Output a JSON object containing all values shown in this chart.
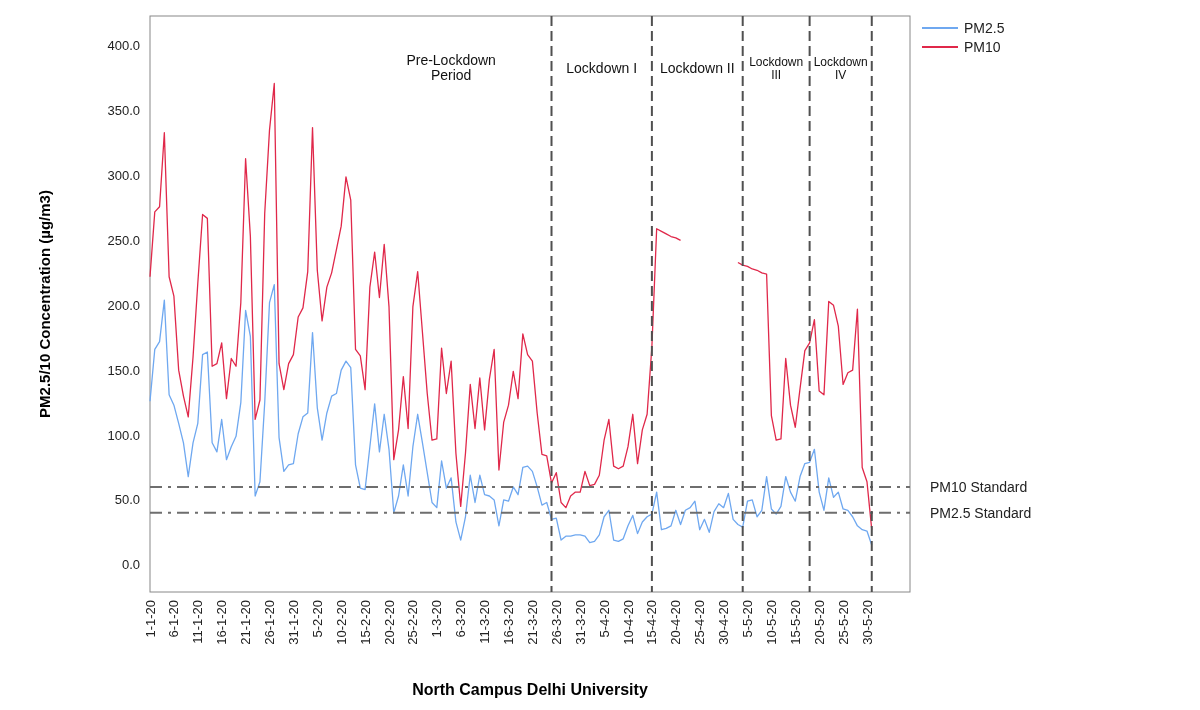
{
  "chart_data": {
    "type": "line",
    "xlabel": "North Campus Delhi University",
    "ylabel": "PM2.5/10 Concentration (µg/m3)",
    "legend": "top right",
    "x": [
      "--01-01",
      "--01-02",
      "--01-03",
      "--01-04",
      "--01-05",
      "--01-06",
      "--01-07",
      "--01-08",
      "--01-09",
      "--01-10",
      "--01-11",
      "--01-12",
      "--01-13",
      "--01-14",
      "--01-15",
      "--01-16",
      "--01-17",
      "--01-18",
      "--01-19",
      "--01-20",
      "--01-21",
      "--01-22",
      "--01-23",
      "--01-24",
      "--01-25",
      "--01-26",
      "--01-27",
      "--01-28",
      "--01-29",
      "--01-30",
      "--01-31",
      "--02-01",
      "--02-02",
      "--02-03",
      "--02-04",
      "--02-05",
      "--02-06",
      "--02-07",
      "--02-08",
      "--02-09",
      "--02-10",
      "--02-11",
      "--02-12",
      "--02-13",
      "--02-14",
      "--02-15",
      "--02-16",
      "--02-17",
      "--02-18",
      "--02-19",
      "--02-20",
      "--02-21",
      "--02-22",
      "--02-23",
      "--02-24",
      "--02-25",
      "--02-26",
      "--02-27",
      "--02-28",
      "--02-29",
      "--03-01",
      "--03-02",
      "--03-03",
      "--03-04",
      "--03-05",
      "--03-06",
      "--03-07",
      "--03-08",
      "--03-09",
      "--03-10",
      "--03-11",
      "--03-12",
      "--03-13",
      "--03-14",
      "--03-15",
      "--03-16",
      "--03-17",
      "--03-18",
      "--03-19",
      "--03-20",
      "--03-21",
      "--03-22",
      "--03-23",
      "--03-24",
      "--03-25",
      "--03-26",
      "--03-27",
      "--03-28",
      "--03-29",
      "--03-30",
      "--03-31",
      "--04-01",
      "--04-02",
      "--04-03",
      "--04-04",
      "--04-05",
      "--04-06",
      "--04-07",
      "--04-08",
      "--04-09",
      "--04-10",
      "--04-11",
      "--04-12",
      "--04-13",
      "--04-14",
      "--04-15",
      "--04-16",
      "--04-17",
      "--04-18",
      "--04-19",
      "--04-20",
      "--04-21",
      "--04-22",
      "--04-23",
      "--04-24",
      "--04-25",
      "--04-26",
      "--04-27",
      "--04-28",
      "--04-29",
      "--04-30",
      "--05-01",
      "--05-02",
      "--05-03",
      "--05-04",
      "--05-05",
      "--05-06",
      "--05-07",
      "--05-08",
      "--05-09",
      "--05-10",
      "--05-11",
      "--05-12",
      "--05-13",
      "--05-14",
      "--05-15",
      "--05-16",
      "--05-17",
      "--05-18",
      "--05-19",
      "--05-20",
      "--05-21",
      "--05-22",
      "--05-23",
      "--05-24",
      "--05-25",
      "--05-26",
      "--05-27",
      "--05-28",
      "--05-29",
      "--05-30",
      "--05-31"
    ],
    "xlim": [
      "--01-01",
      "--06-08"
    ],
    "xticks": [
      {
        "value": "--01-01",
        "label": "1-1-20"
      },
      {
        "value": "--01-06",
        "label": "6-1-20"
      },
      {
        "value": "--01-11",
        "label": "11-1-20"
      },
      {
        "value": "--01-16",
        "label": "16-1-20"
      },
      {
        "value": "--01-21",
        "label": "21-1-20"
      },
      {
        "value": "--01-26",
        "label": "26-1-20"
      },
      {
        "value": "--01-31",
        "label": "31-1-20"
      },
      {
        "value": "--02-05",
        "label": "5-2-20"
      },
      {
        "value": "--02-10",
        "label": "10-2-20"
      },
      {
        "value": "--02-15",
        "label": "15-2-20"
      },
      {
        "value": "--02-20",
        "label": "20-2-20"
      },
      {
        "value": "--02-25",
        "label": "25-2-20"
      },
      {
        "value": "--03-01",
        "label": "1-3-20"
      },
      {
        "value": "--03-06",
        "label": "6-3-20"
      },
      {
        "value": "--03-11",
        "label": "11-3-20"
      },
      {
        "value": "--03-16",
        "label": "16-3-20"
      },
      {
        "value": "--03-21",
        "label": "21-3-20"
      },
      {
        "value": "--03-26",
        "label": "26-3-20"
      },
      {
        "value": "--03-31",
        "label": "31-3-20"
      },
      {
        "value": "--04-05",
        "label": "5-4-20"
      },
      {
        "value": "--04-10",
        "label": "10-4-20"
      },
      {
        "value": "--04-15",
        "label": "15-4-20"
      },
      {
        "value": "--04-20",
        "label": "20-4-20"
      },
      {
        "value": "--04-25",
        "label": "25-4-20"
      },
      {
        "value": "--04-30",
        "label": "30-4-20"
      },
      {
        "value": "--05-05",
        "label": "5-5-20"
      },
      {
        "value": "--05-10",
        "label": "10-5-20"
      },
      {
        "value": "--05-15",
        "label": "15-5-20"
      },
      {
        "value": "--05-20",
        "label": "20-5-20"
      },
      {
        "value": "--05-25",
        "label": "25-5-20"
      },
      {
        "value": "--05-30",
        "label": "30-5-20"
      }
    ],
    "ylim": [
      -21,
      423
    ],
    "yticks": [
      {
        "value": 0,
        "label": "0.0"
      },
      {
        "value": 50,
        "label": "50.0"
      },
      {
        "value": 100,
        "label": "100.0"
      },
      {
        "value": 150,
        "label": "150.0"
      },
      {
        "value": 200,
        "label": "200.0"
      },
      {
        "value": 250,
        "label": "250.0"
      },
      {
        "value": 300,
        "label": "300.0"
      },
      {
        "value": 350,
        "label": "350.0"
      },
      {
        "value": 400,
        "label": "400.0"
      }
    ],
    "series": [
      {
        "name": "PM2.5",
        "color": "#6fa8f0",
        "values": [
          126,
          166,
          172,
          204,
          131,
          123,
          109,
          94,
          68,
          94,
          109,
          162,
          164,
          94,
          87,
          112,
          81,
          91,
          99,
          125,
          196,
          176,
          53,
          64,
          125,
          202,
          216,
          98,
          72,
          77,
          78,
          101,
          114,
          117,
          179,
          121,
          96,
          117,
          130,
          132,
          150,
          157,
          152,
          77,
          59,
          58,
          91,
          124,
          87,
          116,
          89,
          40,
          53,
          77,
          53,
          91,
          116,
          94,
          71,
          48,
          44,
          80,
          59,
          67,
          33,
          19,
          37,
          69,
          48,
          69,
          54,
          53,
          50,
          30,
          50,
          49,
          60,
          54,
          75,
          76,
          72,
          60,
          46,
          48,
          35,
          36,
          19,
          22,
          22,
          23,
          23,
          22,
          17,
          18,
          23,
          37,
          42,
          19,
          18,
          20,
          30,
          38,
          24,
          33,
          37,
          39,
          56,
          27,
          28,
          30,
          42,
          31,
          42,
          44,
          49,
          27,
          35,
          25,
          41,
          47,
          44,
          55,
          35,
          31,
          29,
          49,
          50,
          37,
          42,
          68,
          43,
          39,
          45,
          68,
          56,
          49,
          68,
          78,
          79,
          89,
          56,
          42,
          67,
          52,
          56,
          43,
          42,
          37,
          30,
          27,
          26,
          15
        ]
      },
      {
        "name": "PM10",
        "color": "#e0284a",
        "values": [
          222,
          272,
          276,
          333,
          222,
          207,
          150,
          130,
          114,
          160,
          217,
          270,
          267,
          153,
          155,
          171,
          128,
          159,
          153,
          202,
          313,
          253,
          112,
          127,
          271,
          335,
          371,
          155,
          135,
          155,
          162,
          191,
          198,
          226,
          337,
          227,
          188,
          214,
          225,
          243,
          261,
          299,
          281,
          166,
          161,
          135,
          214,
          241,
          206,
          247,
          199,
          81,
          104,
          145,
          105,
          199,
          226,
          179,
          132,
          96,
          97,
          167,
          132,
          157,
          86,
          45,
          86,
          139,
          105,
          144,
          104,
          143,
          166,
          73,
          110,
          123,
          149,
          128,
          178,
          162,
          157,
          117,
          85,
          84,
          63,
          71,
          48,
          44,
          53,
          56,
          56,
          72,
          61,
          62,
          69,
          96,
          112,
          76,
          74,
          76,
          91,
          116,
          78,
          104,
          116,
          168,
          259,
          257,
          255,
          253,
          252,
          250,
          null,
          null,
          null,
          null,
          null,
          null,
          null,
          null,
          null,
          null,
          null,
          233,
          231,
          230,
          228,
          227,
          225,
          224,
          115,
          96,
          97,
          159,
          123,
          106,
          136,
          165,
          171,
          189,
          134,
          131,
          203,
          200,
          184,
          139,
          148,
          150,
          197,
          75,
          64,
          27
        ]
      }
    ],
    "ref_lines": [
      {
        "axis": "y",
        "value": 60,
        "label": "PM10 Standard",
        "color": "#6e6e6e",
        "line_style": "dashdot"
      },
      {
        "axis": "y",
        "value": 40,
        "label": "PM2.5 Standard",
        "color": "#6e6e6e",
        "line_style": "dashdot"
      },
      {
        "axis": "x",
        "value": "--03-25",
        "color": "#505050",
        "line_style": "dashed"
      },
      {
        "axis": "x",
        "value": "--04-15",
        "color": "#505050",
        "line_style": "dashed"
      },
      {
        "axis": "x",
        "value": "--05-04",
        "color": "#505050",
        "line_style": "dashed"
      },
      {
        "axis": "x",
        "value": "--05-18",
        "color": "#505050",
        "line_style": "dashed"
      },
      {
        "axis": "x",
        "value": "--05-31",
        "color": "#505050",
        "line_style": "dashed"
      }
    ],
    "annotations": [
      "Pre-Lockdown Period",
      "Lockdown I",
      "Lockdown II",
      "Lockdown III",
      "Lockdown IV"
    ]
  }
}
